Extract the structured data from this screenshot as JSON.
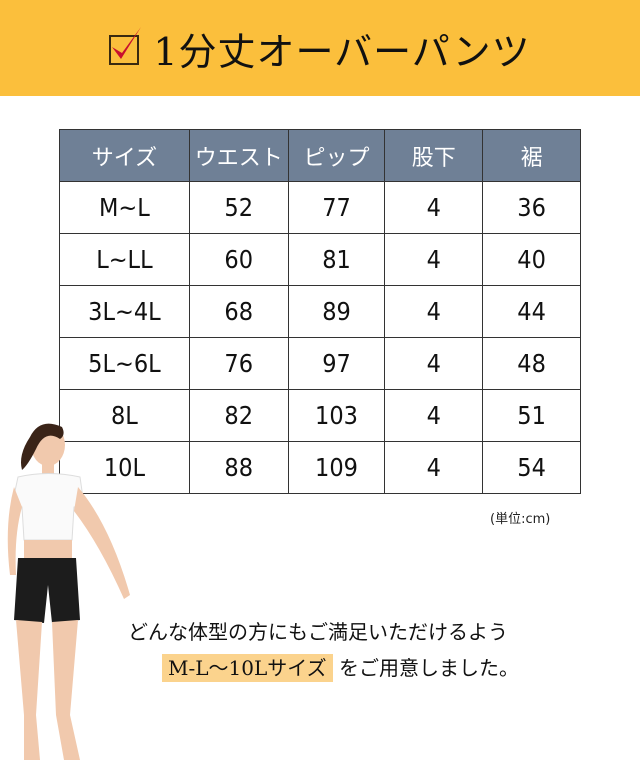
{
  "header": {
    "title": "1分丈オーバーパンツ",
    "icon": "checkbox-checked-icon",
    "bg_color": "#fbbf3c",
    "check_color": "#c8102e"
  },
  "table": {
    "header_color": "#6f8096",
    "columns": [
      "サイズ",
      "ウエスト",
      "ピップ",
      "股下",
      "裾"
    ],
    "rows": [
      [
        "M~L",
        "52",
        "77",
        "4",
        "36"
      ],
      [
        "L~LL",
        "60",
        "81",
        "4",
        "40"
      ],
      [
        "3L~4L",
        "68",
        "89",
        "4",
        "44"
      ],
      [
        "5L~6L",
        "76",
        "97",
        "4",
        "48"
      ],
      [
        "8L",
        "82",
        "103",
        "4",
        "51"
      ],
      [
        "10L",
        "88",
        "109",
        "4",
        "54"
      ]
    ]
  },
  "unit_note": "(単位:cm)",
  "message": {
    "line1": "どんな体型の方にもご満足いただけるよう",
    "highlight": "M-L〜10Lサイズ",
    "line2_rest": "をご用意しました。",
    "highlight_color": "#fbd38d"
  }
}
